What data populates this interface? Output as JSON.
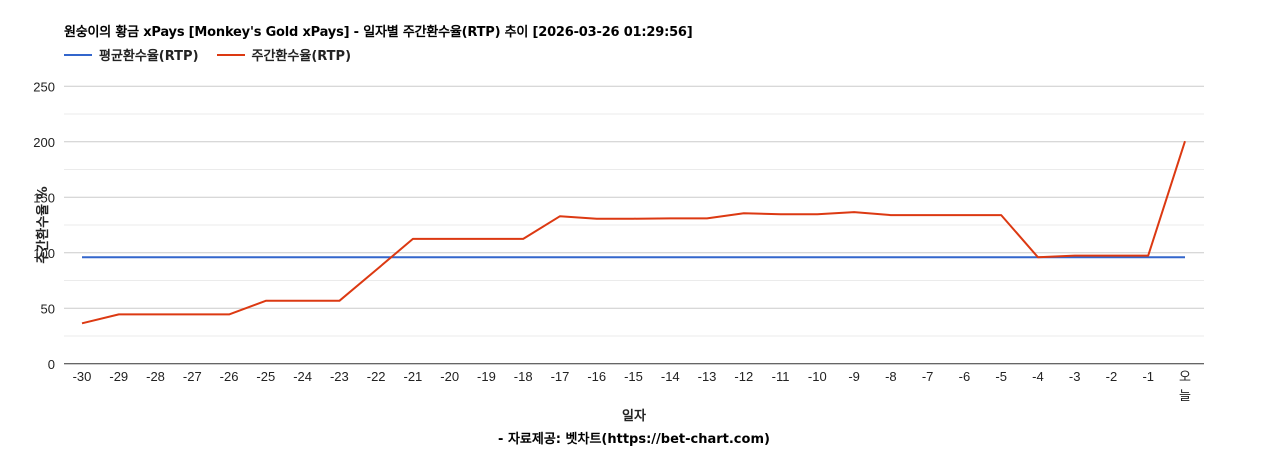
{
  "title": "원숭이의 황금 xPays [Monkey's Gold xPays] - 일자별 주간환수율(RTP) 추이 [2026-03-26 01:29:56]",
  "legend": [
    {
      "label": "평균환수율(RTP)",
      "color": "#3366cc"
    },
    {
      "label": "주간환수율(RTP)",
      "color": "#dc3912"
    }
  ],
  "y_axis_title": "주간환수율 %",
  "x_axis_title": "일자",
  "source": "- 자료제공: 벳차트(https://bet-chart.com)",
  "chart_data": {
    "type": "line",
    "title": "원숭이의 황금 xPays [Monkey's Gold xPays] - 일자별 주간환수율(RTP) 추이 [2026-03-26 01:29:56]",
    "xlabel": "일자",
    "ylabel": "주간환수율 %",
    "ylim": [
      0,
      250
    ],
    "yticks": [
      0,
      50,
      100,
      150,
      200,
      250
    ],
    "grid": true,
    "legend_position": "top",
    "categories": [
      "-30",
      "-29",
      "-28",
      "-27",
      "-26",
      "-25",
      "-24",
      "-23",
      "-22",
      "-21",
      "-20",
      "-19",
      "-18",
      "-17",
      "-16",
      "-15",
      "-14",
      "-13",
      "-12",
      "-11",
      "-10",
      "-9",
      "-8",
      "-7",
      "-6",
      "-5",
      "-4",
      "-3",
      "-2",
      "-1",
      "오늘"
    ],
    "series": [
      {
        "name": "평균환수율(RTP)",
        "color": "#3366cc",
        "values": [
          96,
          96,
          96,
          96,
          96,
          96,
          96,
          96,
          96,
          96,
          96,
          96,
          96,
          96,
          96,
          96,
          96,
          96,
          96,
          96,
          96,
          96,
          96,
          96,
          96,
          96,
          96,
          96,
          96,
          96,
          96
        ]
      },
      {
        "name": "주간환수율(RTP)",
        "color": "#dc3912",
        "values": [
          36.5,
          44.5,
          44.5,
          44.5,
          44.5,
          56.8,
          56.8,
          56.8,
          84.5,
          112.5,
          112.5,
          112.5,
          112.5,
          133,
          130.7,
          130.7,
          131,
          131,
          135.7,
          134.8,
          134.8,
          136.7,
          134,
          134,
          134,
          134,
          96,
          97.5,
          97.5,
          97.5,
          200.5
        ]
      }
    ]
  }
}
